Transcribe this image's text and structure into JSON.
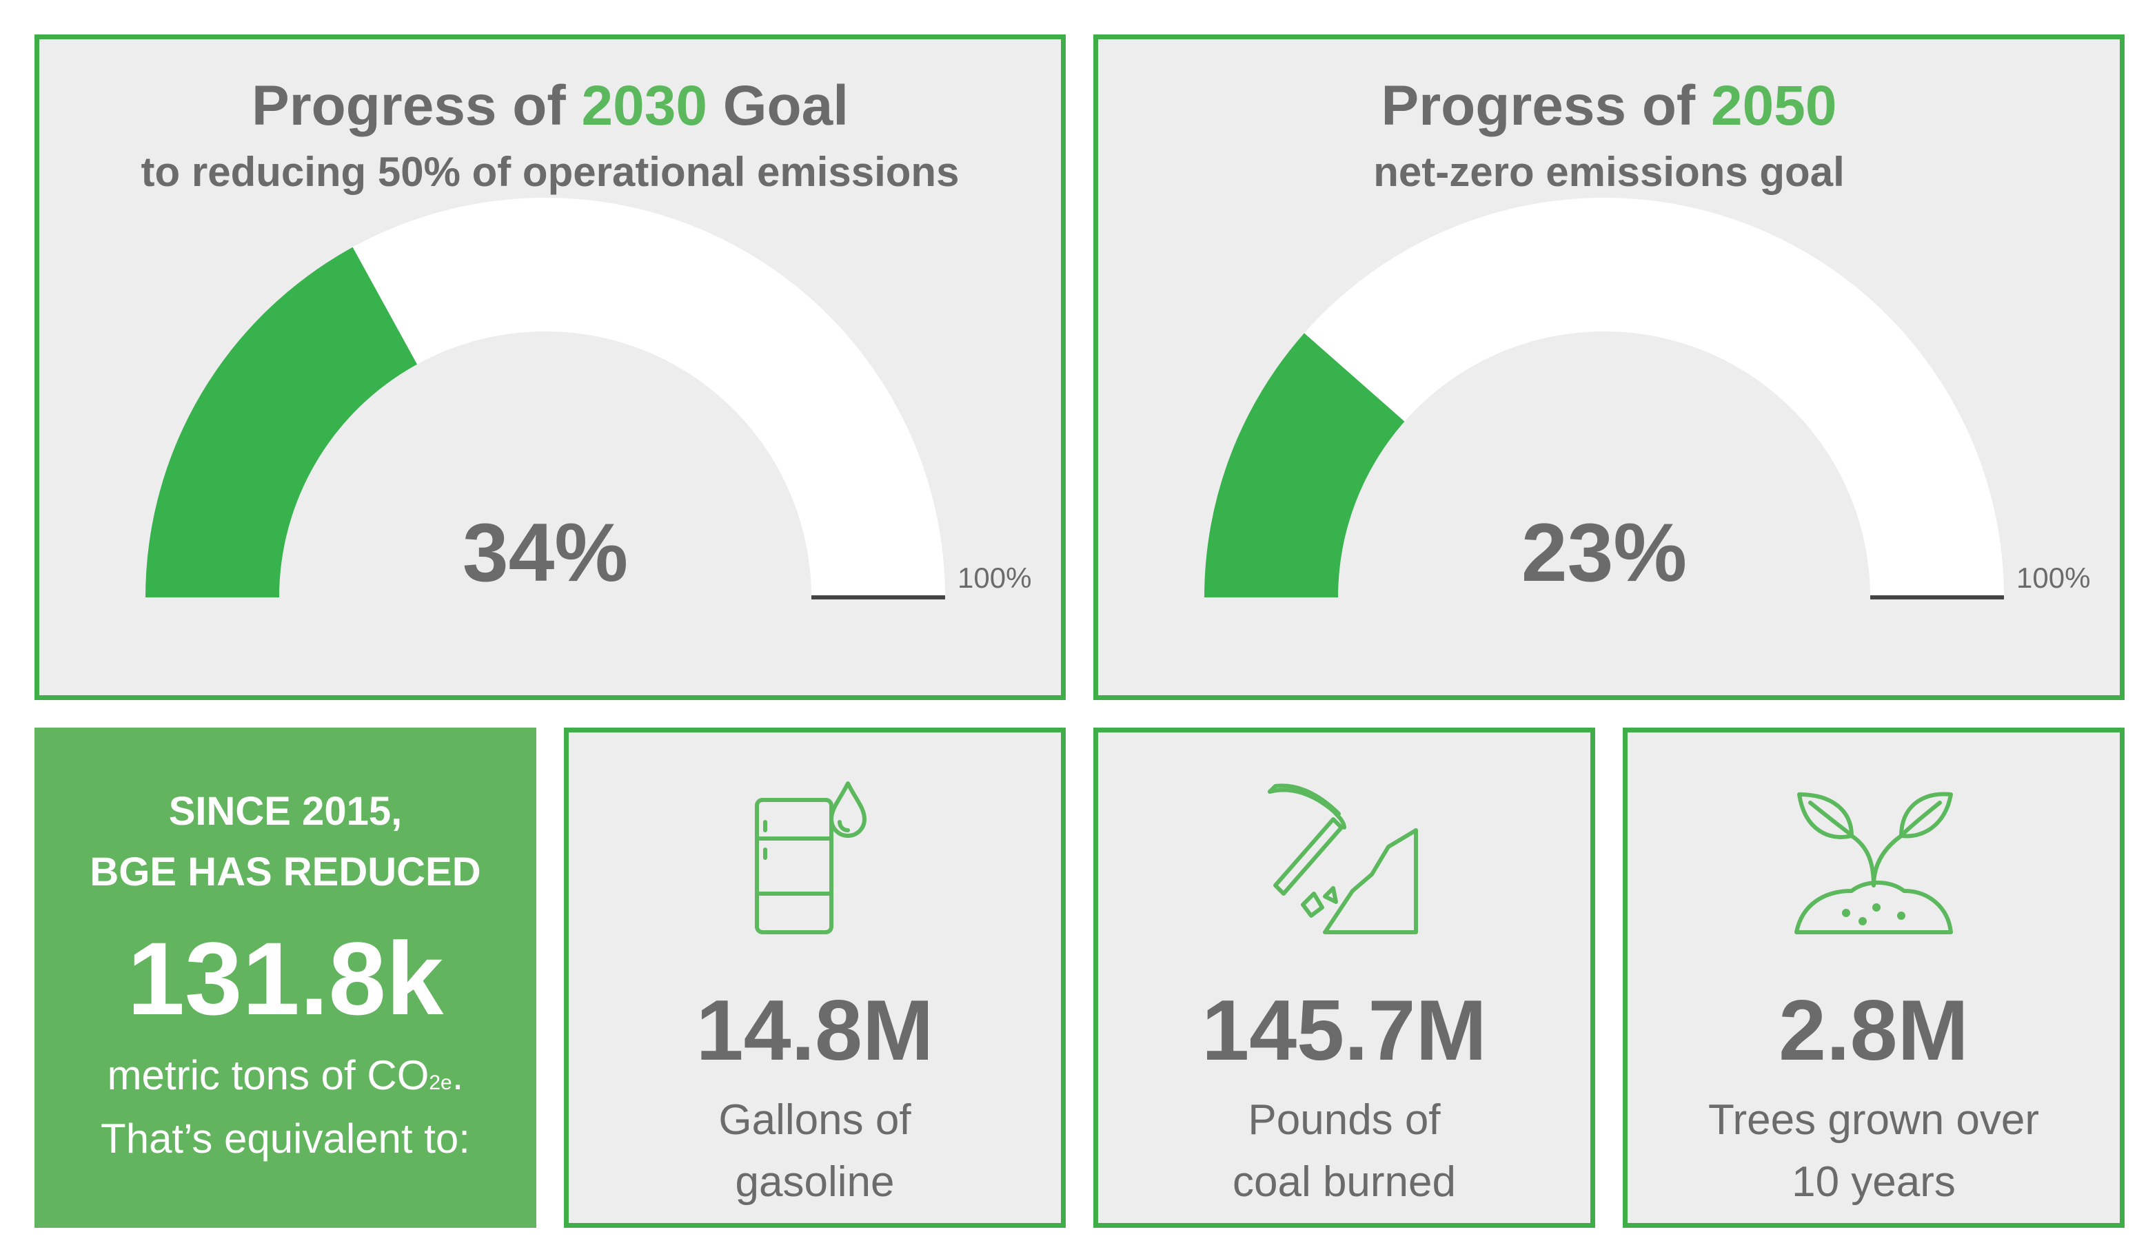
{
  "colors": {
    "accent": "#3fae49",
    "gauge_fill": "#37b24d",
    "gauge_track": "#ffffff",
    "panel_bg": "#ededed",
    "text": "#6b6b6b",
    "highlight_box": "#63b45f"
  },
  "chart_data": [
    {
      "type": "gauge",
      "title_prefix": "Progress of",
      "title_year": "2030",
      "title_suffix": "Goal",
      "subtitle": "to reducing 50% of operational emissions",
      "value": 34,
      "value_label": "34%",
      "max_label": "100%",
      "range": [
        0,
        100
      ]
    },
    {
      "type": "gauge",
      "title_prefix": "Progress of",
      "title_year": "2050",
      "title_suffix": "",
      "subtitle": "net-zero emissions goal",
      "value": 23,
      "value_label": "23%",
      "max_label": "100%",
      "range": [
        0,
        100
      ]
    }
  ],
  "summary": {
    "line1": "SINCE 2015,",
    "line2": "BGE HAS REDUCED",
    "number": "131.8k",
    "text1_main": "metric tons of CO",
    "text1_sub": "2e",
    "text1_end": ".",
    "text2": "That’s equivalent to:"
  },
  "stats": [
    {
      "icon": "oil-barrel-icon",
      "value": "14.8M",
      "label_line1": "Gallons of",
      "label_line2": "gasoline"
    },
    {
      "icon": "coal-mining-icon",
      "value": "145.7M",
      "label_line1": "Pounds of",
      "label_line2": "coal burned"
    },
    {
      "icon": "sprout-icon",
      "value": "2.8M",
      "label_line1": "Trees grown over",
      "label_line2": "10 years"
    }
  ]
}
